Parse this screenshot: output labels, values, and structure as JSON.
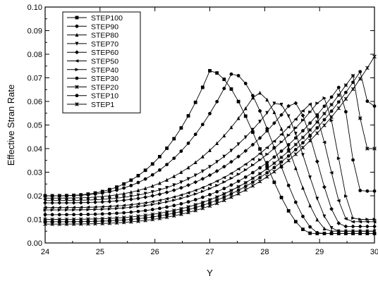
{
  "chart_data": {
    "type": "line",
    "title": "",
    "xlabel": "Y",
    "ylabel": "Effective Stran Rate",
    "xlim": [
      24,
      30
    ],
    "ylim": [
      0.0,
      0.1
    ],
    "x_ticks": [
      "24",
      "25",
      "26",
      "27",
      "28",
      "29",
      "30"
    ],
    "y_ticks": [
      "0.00",
      "0.01",
      "0.02",
      "0.03",
      "0.04",
      "0.05",
      "0.06",
      "0.07",
      "0.08",
      "0.09",
      "0.10"
    ],
    "grid": false,
    "legend_position": "top-left",
    "line_color": "#000000",
    "series": [
      {
        "name": "STEP100",
        "marker": "square",
        "peak_x": 27.0,
        "peak_y": 0.073,
        "left_y": 0.02,
        "right_y": 0.004
      },
      {
        "name": "STEP90",
        "marker": "circle",
        "peak_x": 27.4,
        "peak_y": 0.072,
        "left_y": 0.02,
        "right_y": 0.004
      },
      {
        "name": "STEP80",
        "marker": "triangle-up",
        "peak_x": 27.85,
        "peak_y": 0.064,
        "left_y": 0.019,
        "right_y": 0.005
      },
      {
        "name": "STEP70",
        "marker": "triangle-down",
        "peak_x": 28.2,
        "peak_y": 0.06,
        "left_y": 0.018,
        "right_y": 0.005
      },
      {
        "name": "STEP60",
        "marker": "diamond",
        "peak_x": 28.5,
        "peak_y": 0.06,
        "left_y": 0.017,
        "right_y": 0.007
      },
      {
        "name": "STEP50",
        "marker": "triangle-left",
        "peak_x": 28.8,
        "peak_y": 0.059,
        "left_y": 0.015,
        "right_y": 0.009
      },
      {
        "name": "STEP40",
        "marker": "triangle-right",
        "peak_x": 29.05,
        "peak_y": 0.062,
        "left_y": 0.014,
        "right_y": 0.01
      },
      {
        "name": "STEP30",
        "marker": "circle",
        "peak_x": 29.35,
        "peak_y": 0.066,
        "left_y": 0.012,
        "right_y": 0.022
      },
      {
        "name": "STEP20",
        "marker": "star",
        "peak_x": 29.6,
        "peak_y": 0.071,
        "left_y": 0.01,
        "right_y": 0.04
      },
      {
        "name": "STEP10",
        "marker": "circle",
        "peak_x": 29.75,
        "peak_y": 0.073,
        "left_y": 0.009,
        "right_y": 0.058
      },
      {
        "name": "STEP1",
        "marker": "x",
        "peak_x": 30.0,
        "peak_y": 0.079,
        "left_y": 0.008,
        "right_y": 0.079
      }
    ]
  }
}
